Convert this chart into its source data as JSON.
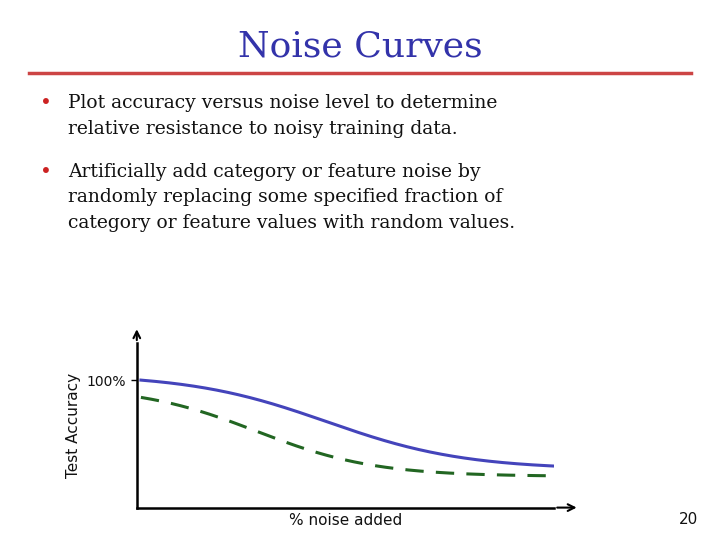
{
  "title": "Noise Curves",
  "title_color": "#3333aa",
  "title_fontsize": 26,
  "separator_color": "#cc4444",
  "bullet1_line1": "Plot accuracy versus noise level to determine",
  "bullet1_line2": "relative resistance to noisy training data.",
  "bullet2_line1": "Artificially add category or feature noise by",
  "bullet2_line2": "randomly replacing some specified fraction of",
  "bullet2_line3": "category or feature values with random values.",
  "bullet_color": "#cc2222",
  "text_color": "#111111",
  "text_fontsize": 13.5,
  "xlabel": "% noise added",
  "ylabel": "Test Accuracy",
  "ytick_label": "100%",
  "curve1_color": "#4444bb",
  "curve2_color": "#226622",
  "background_color": "#ffffff",
  "page_number": "20"
}
